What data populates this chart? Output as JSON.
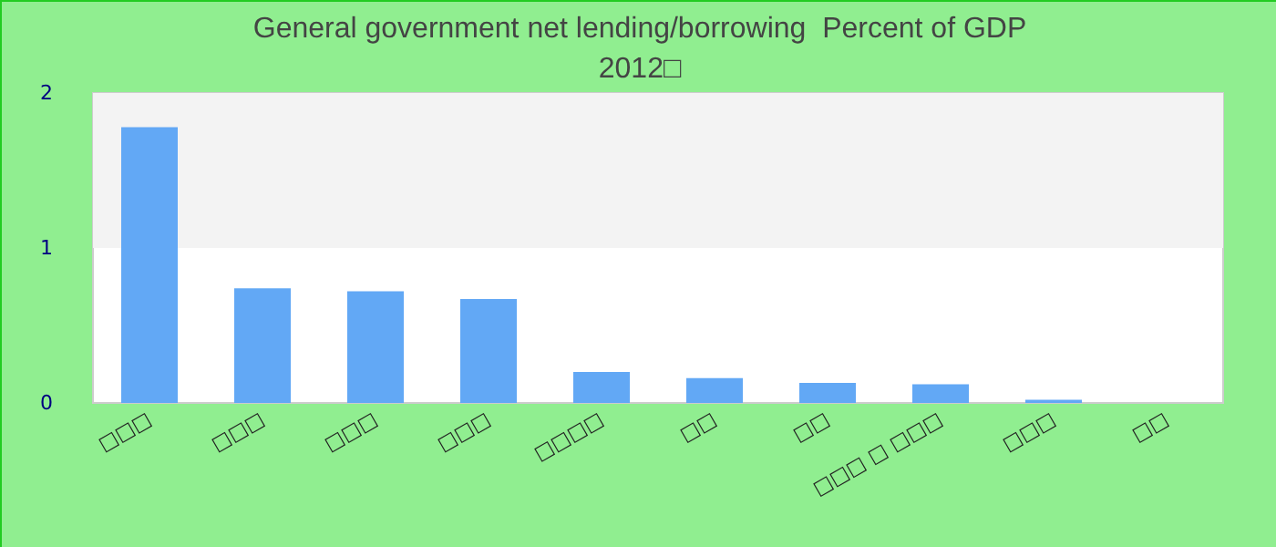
{
  "chart_data": {
    "type": "bar",
    "title": "General government net lending/borrowing  Percent of GDP",
    "subtitle": "2012□",
    "categories": [
      "□□□",
      "□□□",
      "□□□",
      "□□□",
      "□□□□",
      "□□",
      "□□",
      "□□□ □ □□□",
      "□□□",
      "□□"
    ],
    "values": [
      1.78,
      0.74,
      0.72,
      0.67,
      0.2,
      0.16,
      0.13,
      0.12,
      0.02,
      0
    ],
    "color": "#62a8f5",
    "ylim": [
      0,
      2
    ],
    "yticks": [
      0,
      1,
      2
    ],
    "grid": false,
    "bands": [
      {
        "axis": "y",
        "from": 1,
        "to": 2,
        "color": "#f3f3f3"
      }
    ]
  }
}
